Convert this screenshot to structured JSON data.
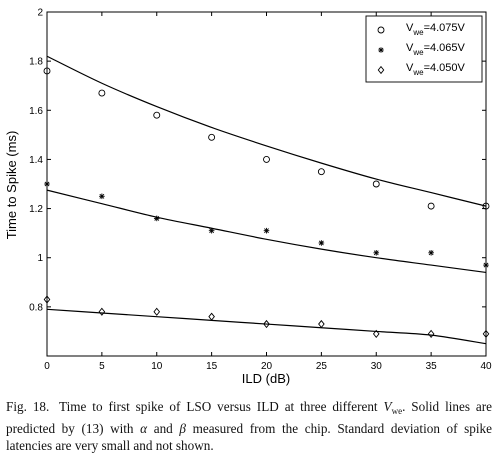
{
  "chart_data": {
    "type": "scatter",
    "xlabel": "ILD (dB)",
    "ylabel": "Time to Spike (ms)",
    "xlim": [
      0,
      40
    ],
    "ylim": [
      0.6,
      2
    ],
    "xticks": [
      0,
      5,
      10,
      15,
      20,
      25,
      30,
      35,
      40
    ],
    "yticks": [
      0.6,
      0.8,
      1,
      1.2,
      1.4,
      1.6,
      1.8,
      2
    ],
    "xtick_labels": [
      "0",
      "5",
      "10",
      "15",
      "20",
      "25",
      "30",
      "35",
      "40"
    ],
    "ytick_labels": [
      "",
      "0.8",
      "1",
      "1.2",
      "1.4",
      "1.6",
      "1.8",
      "2"
    ],
    "grid": false,
    "legend_position": "top-right",
    "x": [
      0,
      5,
      10,
      15,
      20,
      25,
      30,
      35,
      40
    ],
    "series": [
      {
        "name": "V_we=4.075V",
        "legend_main": "V",
        "legend_sub": "we",
        "legend_rest": "=4.075V",
        "marker": "circle",
        "values": [
          1.76,
          1.67,
          1.58,
          1.49,
          1.4,
          1.35,
          1.3,
          1.21,
          1.21
        ],
        "fit": [
          1.82,
          1.71,
          1.615,
          1.53,
          1.455,
          1.385,
          1.32,
          1.265,
          1.21
        ]
      },
      {
        "name": "V_we=4.065V",
        "legend_main": "V",
        "legend_sub": "we",
        "legend_rest": "=4.065V",
        "marker": "star",
        "values": [
          1.3,
          1.25,
          1.16,
          1.11,
          1.11,
          1.06,
          1.02,
          1.02,
          0.97
        ],
        "fit": [
          1.275,
          1.22,
          1.165,
          1.12,
          1.075,
          1.035,
          1.0,
          0.97,
          0.94
        ]
      },
      {
        "name": "V_we=4.050V",
        "legend_main": "V",
        "legend_sub": "we",
        "legend_rest": "=4.050V",
        "marker": "diamond",
        "values": [
          0.83,
          0.78,
          0.78,
          0.76,
          0.73,
          0.73,
          0.69,
          0.69,
          0.69
        ],
        "fit": [
          0.79,
          0.775,
          0.76,
          0.745,
          0.73,
          0.715,
          0.7,
          0.685,
          0.65
        ]
      }
    ]
  },
  "caption": {
    "label": "Fig. 18.",
    "text1": "Time to first spike of LSO versus ILD at three different ",
    "var_main": "V",
    "var_sub": "we",
    "text2": ". Solid lines are predicted by (13) with ",
    "alpha": "α",
    "text3": " and ",
    "beta": "β",
    "text4": " measured from the chip. Standard deviation of spike latencies are very small and not shown."
  }
}
